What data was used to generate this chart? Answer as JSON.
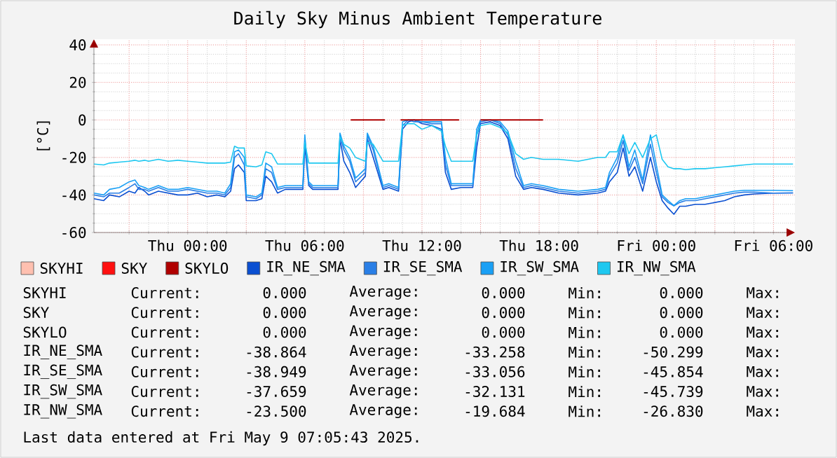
{
  "chart_data": {
    "type": "line",
    "title": "Daily Sky Minus Ambient Temperature",
    "ylabel": "[°C]",
    "xlim": [
      "2025-05-07T19:12",
      "2025-05-09T07:06"
    ],
    "ylim": [
      -60,
      43
    ],
    "xticks": [
      {
        "value": "2025-05-07T21:00",
        "label": null
      },
      {
        "value": "2025-05-08T00:00",
        "label": "Thu 00:00"
      },
      {
        "value": "2025-05-08T03:00",
        "label": null
      },
      {
        "value": "2025-05-08T06:00",
        "label": "Thu 06:00"
      },
      {
        "value": "2025-05-08T09:00",
        "label": null
      },
      {
        "value": "2025-05-08T12:00",
        "label": "Thu 12:00"
      },
      {
        "value": "2025-05-08T15:00",
        "label": null
      },
      {
        "value": "2025-05-08T18:00",
        "label": "Thu 18:00"
      },
      {
        "value": "2025-05-08T21:00",
        "label": null
      },
      {
        "value": "2025-05-09T00:00",
        "label": "Fri 00:00"
      },
      {
        "value": "2025-05-09T03:00",
        "label": null
      },
      {
        "value": "2025-05-09T06:00",
        "label": "Fri 06:00"
      }
    ],
    "yticks": [
      -60,
      -40,
      -20,
      0,
      20,
      40
    ],
    "grid": true,
    "legend": "bottom",
    "x": [
      "2025-05-07T19:12",
      "2025-05-07T19:42",
      "2025-05-07T20:00",
      "2025-05-07T20:30",
      "2025-05-07T21:00",
      "2025-05-07T21:18",
      "2025-05-07T21:30",
      "2025-05-07T21:48",
      "2025-05-07T22:00",
      "2025-05-07T22:30",
      "2025-05-07T23:00",
      "2025-05-07T23:30",
      "2025-05-08T00:00",
      "2025-05-08T00:30",
      "2025-05-08T01:00",
      "2025-05-08T01:30",
      "2025-05-08T01:54",
      "2025-05-08T02:12",
      "2025-05-08T02:24",
      "2025-05-08T02:36",
      "2025-05-08T02:54",
      "2025-05-08T03:00",
      "2025-05-08T03:30",
      "2025-05-08T03:48",
      "2025-05-08T04:00",
      "2025-05-08T04:18",
      "2025-05-08T04:36",
      "2025-05-08T05:00",
      "2025-05-08T05:54",
      "2025-05-08T06:00",
      "2025-05-08T06:12",
      "2025-05-08T06:24",
      "2025-05-08T07:00",
      "2025-05-08T07:42",
      "2025-05-08T07:48",
      "2025-05-08T08:00",
      "2025-05-08T08:18",
      "2025-05-08T08:36",
      "2025-05-08T09:06",
      "2025-05-08T09:12",
      "2025-05-08T09:30",
      "2025-05-08T10:00",
      "2025-05-08T10:18",
      "2025-05-08T10:48",
      "2025-05-08T11:00",
      "2025-05-08T11:18",
      "2025-05-08T11:36",
      "2025-05-08T12:00",
      "2025-05-08T12:30",
      "2025-05-08T13:00",
      "2025-05-08T13:12",
      "2025-05-08T13:30",
      "2025-05-08T14:00",
      "2025-05-08T14:30",
      "2025-05-08T14:36",
      "2025-05-08T14:48",
      "2025-05-08T15:00",
      "2025-05-08T15:30",
      "2025-05-08T16:00",
      "2025-05-08T16:24",
      "2025-05-08T16:48",
      "2025-05-08T17:12",
      "2025-05-08T17:36",
      "2025-05-08T18:12",
      "2025-05-08T19:00",
      "2025-05-08T20:00",
      "2025-05-08T21:00",
      "2025-05-08T21:24",
      "2025-05-08T21:36",
      "2025-05-08T22:00",
      "2025-05-08T22:18",
      "2025-05-08T22:36",
      "2025-05-08T22:54",
      "2025-05-08T23:18",
      "2025-05-08T23:42",
      "2025-05-09T00:00",
      "2025-05-09T00:18",
      "2025-05-09T00:36",
      "2025-05-09T00:54",
      "2025-05-09T01:12",
      "2025-05-09T01:30",
      "2025-05-09T02:00",
      "2025-05-09T02:30",
      "2025-05-09T03:00",
      "2025-05-09T03:30",
      "2025-05-09T04:00",
      "2025-05-09T04:30",
      "2025-05-09T05:00",
      "2025-05-09T06:00",
      "2025-05-09T07:00"
    ],
    "series": [
      {
        "name": "SKYHI",
        "color": "#ffc0b0",
        "values": [
          null,
          null,
          null,
          null,
          null,
          null,
          null,
          null,
          null,
          null,
          null,
          null,
          null,
          null,
          null,
          null,
          null,
          null,
          null,
          null,
          null,
          null,
          null,
          null,
          null,
          null,
          null,
          null,
          null,
          null,
          null,
          null,
          null,
          null,
          null,
          null,
          null,
          null,
          null,
          null,
          null,
          null,
          null,
          null,
          null,
          null,
          null,
          null,
          null,
          null,
          null,
          null,
          null,
          null,
          null,
          null,
          null,
          null,
          null,
          null,
          null,
          null,
          null,
          null,
          null,
          null,
          null,
          null,
          null,
          null,
          null,
          null,
          null,
          null,
          null,
          null,
          null,
          null,
          null,
          null,
          null,
          null,
          null,
          null,
          null,
          null,
          null,
          null,
          null,
          null
        ]
      },
      {
        "name": "SKY",
        "color": "#ff1010",
        "values": [
          null,
          null,
          null,
          null,
          null,
          null,
          null,
          null,
          null,
          null,
          null,
          null,
          null,
          null,
          null,
          null,
          null,
          null,
          null,
          null,
          null,
          null,
          null,
          null,
          null,
          null,
          null,
          null,
          null,
          null,
          null,
          null,
          null,
          null,
          null,
          null,
          null,
          null,
          null,
          null,
          null,
          null,
          null,
          null,
          null,
          null,
          null,
          null,
          null,
          null,
          null,
          null,
          null,
          null,
          null,
          null,
          null,
          null,
          null,
          null,
          null,
          null,
          null,
          null,
          null,
          null,
          null,
          null,
          null,
          null,
          null,
          null,
          null,
          null,
          null,
          null,
          null,
          null,
          null,
          null,
          null,
          null,
          null,
          null,
          null,
          null,
          null,
          null,
          null,
          null
        ]
      },
      {
        "name": "SKYLO",
        "color": "#b00000",
        "x": [
          "2025-05-08T08:21",
          "2025-05-08T10:06",
          "2025-05-08T10:12",
          "2025-05-08T10:54",
          "2025-05-08T13:54",
          "2025-05-08T14:00",
          "2025-05-08T15:00",
          "2025-05-08T18:12"
        ],
        "values": [
          0,
          0,
          null,
          0,
          0,
          null,
          0,
          0
        ]
      },
      {
        "name": "IR_NE_SMA",
        "color": "#0a4fd1",
        "values": [
          -42,
          -43,
          -40,
          -41,
          -38,
          -39,
          -36,
          -38,
          -40,
          -38,
          -39,
          -40,
          -40,
          -39,
          -41,
          -40,
          -41,
          -38,
          -26,
          -24,
          -28,
          -43,
          -43,
          -42,
          -30,
          -33,
          -39,
          -37,
          -37,
          -14,
          -35,
          -37,
          -37,
          -37,
          -10,
          -22,
          -28,
          -36,
          -30,
          -10,
          -20,
          -37,
          -36,
          -38,
          -5,
          -1,
          0,
          -2,
          -3,
          -5,
          -28,
          -37,
          -36,
          -36,
          -36,
          -15,
          -2,
          -1,
          -3,
          -10,
          -30,
          -37,
          -36,
          -37,
          -39,
          -40,
          -39,
          -38,
          -33,
          -28,
          -15,
          -30,
          -25,
          -38,
          -20,
          -33,
          -43,
          -47,
          -50.3,
          -46,
          -46,
          -45,
          -45,
          -44,
          -43,
          -41,
          -40,
          -39.5,
          -39,
          -38.9
        ]
      },
      {
        "name": "IR_SE_SMA",
        "color": "#2a7fe6",
        "values": [
          -40,
          -41,
          -39,
          -39,
          -36,
          -34,
          -37,
          -37,
          -38,
          -36,
          -38,
          -38,
          -37,
          -38,
          -39,
          -39,
          -40,
          -36,
          -20,
          -18,
          -24,
          -41,
          -42,
          -40,
          -26,
          -28,
          -37,
          -36,
          -36,
          -10,
          -34,
          -36,
          -36,
          -36,
          -8,
          -16,
          -22,
          -33,
          -28,
          -8,
          -16,
          -36,
          -35,
          -37,
          -3,
          0,
          -1,
          -1,
          -2,
          -2,
          -24,
          -35,
          -35,
          -35,
          -35,
          -8,
          -1,
          0,
          -2,
          -8,
          -26,
          -36,
          -35,
          -36,
          -38,
          -39,
          -38,
          -37,
          -30,
          -23,
          -11,
          -27,
          -20,
          -34,
          -13,
          -28,
          -41,
          -44,
          -45.8,
          -44,
          -43,
          -43,
          -42,
          -41,
          -40,
          -39,
          -38.5,
          -38.5,
          -39,
          -38.9
        ]
      },
      {
        "name": "IR_SW_SMA",
        "color": "#1aa0f5",
        "values": [
          -39,
          -40,
          -37,
          -36,
          -33,
          -32,
          -35,
          -36,
          -37,
          -35,
          -37,
          -37,
          -36,
          -37,
          -38,
          -38,
          -39,
          -34,
          -17,
          -16,
          -20,
          -40,
          -41,
          -39,
          -23,
          -25,
          -36,
          -35,
          -35,
          -8,
          -33,
          -35,
          -35,
          -35,
          -7,
          -14,
          -20,
          -31,
          -26,
          -7,
          -14,
          -35,
          -34,
          -36,
          -1,
          0,
          0,
          -1,
          -1,
          -1,
          -20,
          -34,
          -34,
          -34,
          -34,
          -5,
          0,
          0,
          -1,
          -6,
          -22,
          -35,
          -34,
          -35,
          -37,
          -38,
          -37,
          -36,
          -28,
          -20,
          -8,
          -25,
          -16,
          -32,
          -8,
          -24,
          -40,
          -43,
          -45.7,
          -43,
          -42,
          -42,
          -41,
          -40,
          -39,
          -38,
          -37.5,
          -37.5,
          -37.5,
          -37.7
        ]
      },
      {
        "name": "IR_NW_SMA",
        "color": "#1ec8f0",
        "values": [
          -23.5,
          -24,
          -23,
          -22.5,
          -22,
          -21.5,
          -22,
          -21.5,
          -22,
          -21,
          -22,
          -21.5,
          -22,
          -22.5,
          -23,
          -23,
          -23,
          -22.5,
          -14,
          -15,
          -15,
          -24.5,
          -25,
          -24,
          -17,
          -18,
          -23.5,
          -23.5,
          -23.5,
          -12,
          -23,
          -23,
          -23,
          -23,
          -9,
          -13,
          -15,
          -20,
          -22,
          -12,
          -13,
          -22,
          -22,
          -22,
          -3,
          -2,
          -2,
          -5,
          -3,
          -6,
          -14,
          -22,
          -22,
          -22,
          -22,
          -8,
          -3,
          -2,
          -4,
          -7,
          -18,
          -21,
          -20,
          -21,
          -21,
          -22,
          -20,
          -20,
          -17,
          -17,
          -8,
          -18,
          -12,
          -20,
          -10,
          -8,
          -21,
          -25,
          -26,
          -26,
          -26.5,
          -26,
          -26,
          -25.5,
          -25,
          -24.5,
          -24,
          -23.5,
          -23.5,
          -23.5
        ]
      }
    ],
    "annotations": [
      "SKYHI",
      "Current:",
      "0.000",
      "Average:",
      "0.000",
      "Min:",
      "0.000",
      "Max:",
      "SKY",
      "Current:",
      "0.000",
      "Average:",
      "0.000",
      "Min:",
      "0.000",
      "Max:",
      "SKYLO",
      "Current:",
      "0.000",
      "Average:",
      "0.000",
      "Min:",
      "0.000",
      "Max:",
      "IR_NE_SMA",
      "Current:",
      "-38.864",
      "Average:",
      "-33.258",
      "Min:",
      "-50.299",
      "Max:",
      "IR_SE_SMA",
      "Current:",
      "-38.949",
      "Average:",
      "-33.056",
      "Min:",
      "-45.854",
      "Max:",
      "IR_SW_SMA",
      "Current:",
      "-37.659",
      "Average:",
      "-32.131",
      "Min:",
      "-45.739",
      "Max:",
      "IR_NW_SMA",
      "Current:",
      "-23.500",
      "Average:",
      "-19.684",
      "Min:",
      "-26.830",
      "Max:",
      "Last data entered at Fri May  9 07:05:43 2025."
    ]
  }
}
